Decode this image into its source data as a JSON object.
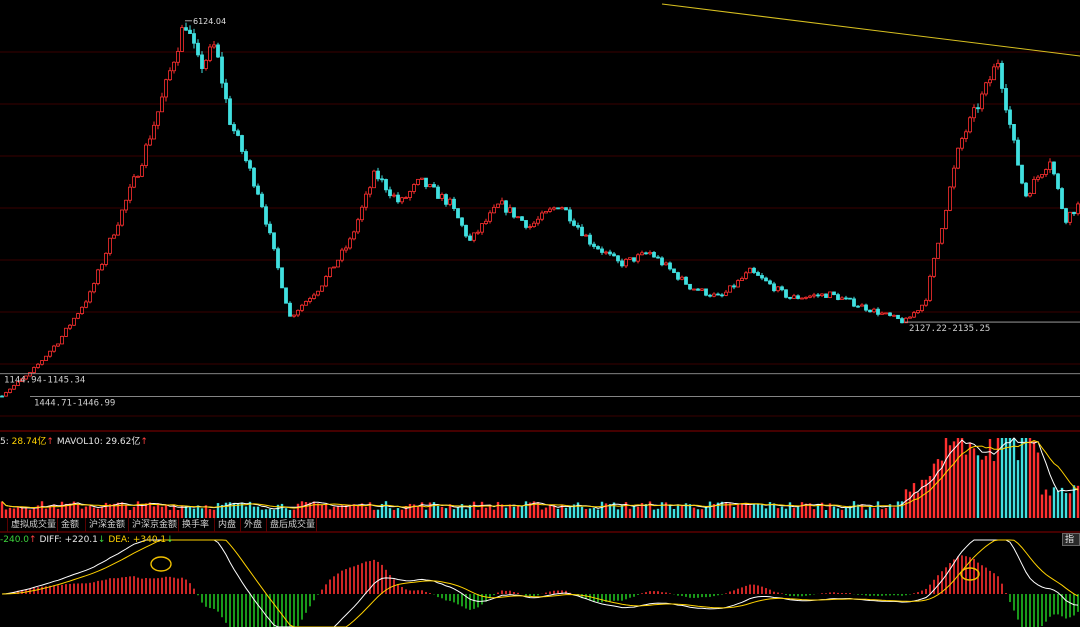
{
  "chart_data": [
    {
      "type": "candlestick",
      "peak_label": "6124.04",
      "range_labels": [
        "1444.71-1446.99",
        "1144.94-1145.34",
        "2127.22-2135.25"
      ],
      "horizontal_levels": [
        1146,
        1446,
        2131
      ],
      "peak": 6124,
      "ylim": [
        700,
        6400
      ],
      "anchors": [
        [
          0,
          1150
        ],
        [
          30,
          1446
        ],
        [
          60,
          1900
        ],
        [
          90,
          2500
        ],
        [
          110,
          3200
        ],
        [
          140,
          4200
        ],
        [
          160,
          5000
        ],
        [
          185,
          6124
        ],
        [
          200,
          5500
        ],
        [
          215,
          5800
        ],
        [
          230,
          4800
        ],
        [
          260,
          3800
        ],
        [
          290,
          2200
        ],
        [
          320,
          2600
        ],
        [
          350,
          3200
        ],
        [
          375,
          4100
        ],
        [
          400,
          3700
        ],
        [
          420,
          4000
        ],
        [
          450,
          3700
        ],
        [
          470,
          3200
        ],
        [
          500,
          3700
        ],
        [
          530,
          3400
        ],
        [
          560,
          3700
        ],
        [
          590,
          3200
        ],
        [
          620,
          2900
        ],
        [
          650,
          3050
        ],
        [
          690,
          2600
        ],
        [
          720,
          2450
        ],
        [
          750,
          2800
        ],
        [
          790,
          2450
        ],
        [
          830,
          2500
        ],
        [
          880,
          2250
        ],
        [
          905,
          2131
        ],
        [
          925,
          2400
        ],
        [
          960,
          4500
        ],
        [
          985,
          5200
        ],
        [
          998,
          5600
        ],
        [
          1012,
          4600
        ],
        [
          1025,
          3800
        ],
        [
          1050,
          4300
        ],
        [
          1065,
          3500
        ],
        [
          1080,
          3700
        ]
      ]
    },
    {
      "type": "bar",
      "name": "volume",
      "mavol5": "28.74亿",
      "mavol10": "29.62亿"
    },
    {
      "type": "macd",
      "macd": "-240.0",
      "diff": "+220.1",
      "dea": "+340.1"
    }
  ],
  "readouts": {
    "vol_prefix": "5: ",
    "vol_mavol5": "28.74亿",
    "vol_mavol10_label": "MAVOL10: ",
    "vol_mavol10": "29.62亿",
    "up_arrow": "↑",
    "down_arrow": "↓",
    "macd_value": "-240.0",
    "diff_label": "DIFF: ",
    "diff_value": "+220.1",
    "dea_label": "DEA: ",
    "dea_value": "+340.1"
  },
  "tabs": [
    "",
    "虚拟成交量",
    "金额",
    "沪深金额",
    "沪深京金额",
    "换手率",
    "内盘",
    "外盘",
    "盘后成交量"
  ],
  "indicator_button": "指标",
  "colors": {
    "up": "#ff3030",
    "down": "#40e0e0",
    "macd_down": "#20c020",
    "ma_yellow": "#ffd200",
    "ma_white": "#ffffff",
    "trendline": "#d8c020",
    "grid": "#3a0000"
  }
}
